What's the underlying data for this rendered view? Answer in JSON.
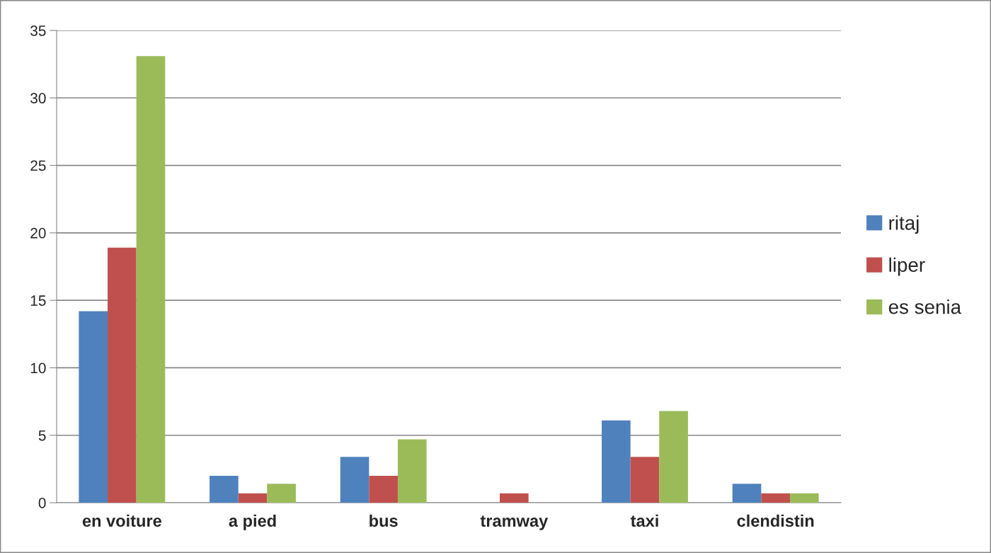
{
  "chart_data": {
    "type": "bar",
    "categories": [
      "en voiture",
      "a pied",
      "bus",
      "tramway",
      "taxi",
      "clendistin"
    ],
    "series": [
      {
        "name": "ritaj",
        "color": "#4f81bd",
        "values": [
          14.2,
          2.0,
          3.4,
          null,
          6.1,
          1.4
        ]
      },
      {
        "name": "liper",
        "color": "#c0504d",
        "values": [
          18.9,
          0.7,
          2.0,
          0.7,
          3.4,
          0.7
        ]
      },
      {
        "name": "es senia",
        "color": "#9bbb59",
        "values": [
          33.1,
          1.4,
          4.7,
          null,
          6.8,
          0.7
        ]
      }
    ],
    "ylim": [
      0,
      35
    ],
    "yticks": [
      0,
      5,
      10,
      15,
      20,
      25,
      30,
      35
    ],
    "grid": "y",
    "legend": "right"
  }
}
